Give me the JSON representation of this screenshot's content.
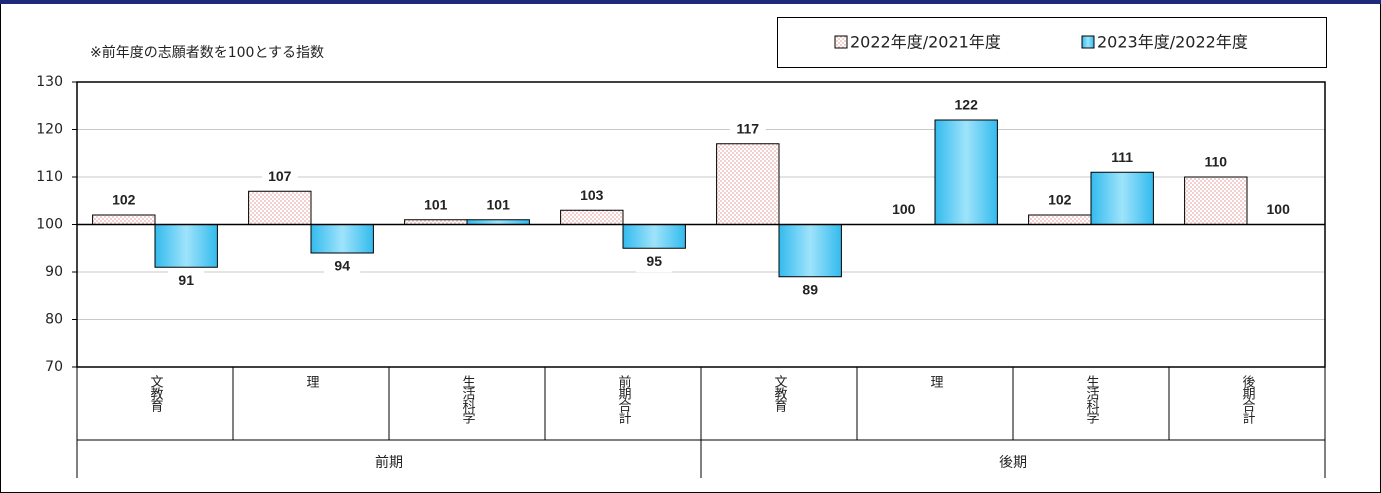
{
  "chart_data": {
    "type": "bar",
    "subtitle": "※前年度の志願者数を100とする指数",
    "categories": [
      "文教育",
      "理",
      "生活科学",
      "前期合計",
      "文教育",
      "理",
      "生活科学",
      "後期合計"
    ],
    "groups": [
      "前期",
      "後期"
    ],
    "series": [
      {
        "name": "2022年度/2021年度",
        "color": "#e9aeae",
        "label_color": "#c00000",
        "values": [
          102,
          107,
          101,
          103,
          117,
          100,
          102,
          110
        ]
      },
      {
        "name": "2023年度/2022年度",
        "color": "#33bbee",
        "label_color": "#0000cc",
        "values": [
          91,
          94,
          101,
          95,
          89,
          122,
          111,
          100
        ]
      }
    ],
    "bar_base": 100,
    "ylim": [
      70,
      130
    ],
    "yticks": [
      70,
      80,
      90,
      100,
      110,
      120,
      130
    ],
    "grid": true
  }
}
